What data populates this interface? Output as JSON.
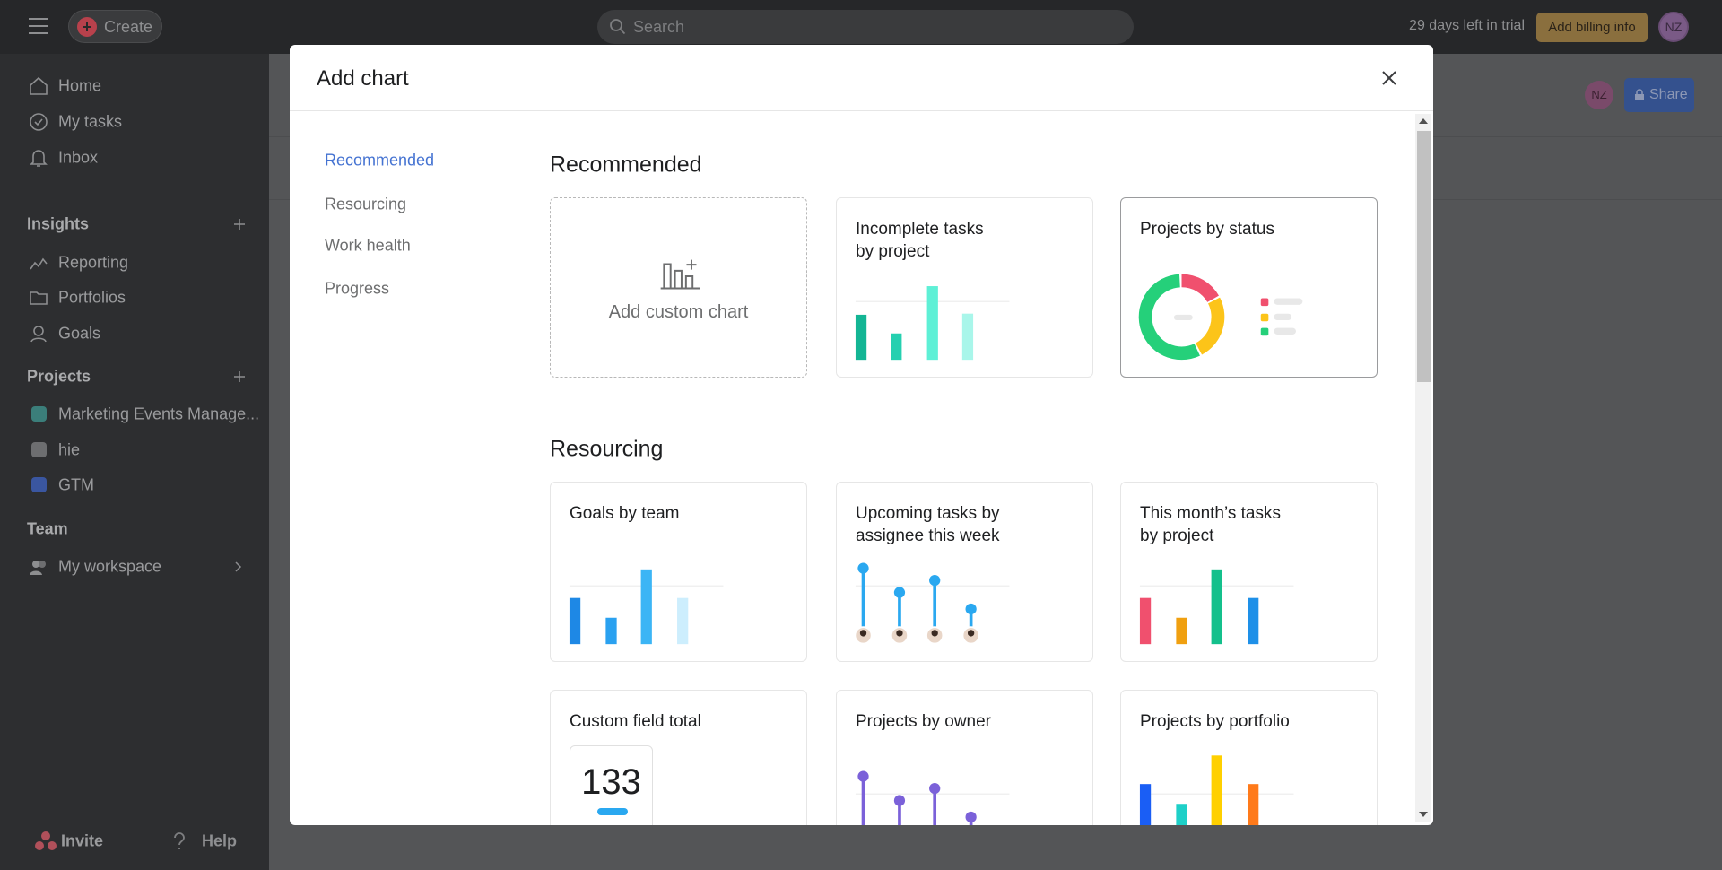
{
  "topbar": {
    "create": "Create",
    "search_placeholder": "Search",
    "trial": "29 days left in trial",
    "billing": "Add billing info",
    "avatar": "NZ"
  },
  "sidebar": {
    "nav": [
      "Home",
      "My tasks",
      "Inbox"
    ],
    "insights": {
      "title": "Insights",
      "items": [
        "Reporting",
        "Portfolios",
        "Goals"
      ]
    },
    "projects": {
      "title": "Projects",
      "items": [
        "Marketing Events Manage...",
        "hie",
        "GTM"
      ]
    },
    "team": {
      "title": "Team",
      "items": [
        "My workspace"
      ]
    },
    "footer": [
      "Invite",
      "Help"
    ]
  },
  "background": {
    "avatar": "NZ",
    "share": "Share"
  },
  "modal": {
    "title": "Add chart",
    "nav": [
      "Recommended",
      "Resourcing",
      "Work health",
      "Progress"
    ],
    "sections": [
      {
        "title": "Recommended",
        "cards": [
          "Add custom chart",
          "Incomplete tasks\nby project",
          "Projects by status"
        ]
      },
      {
        "title": "Resourcing",
        "cards": [
          "Goals by team",
          "Upcoming tasks by\nassignee this week",
          "This month’s tasks\nby project",
          "Custom field total",
          "Projects by owner",
          "Projects by portfolio"
        ]
      }
    ],
    "sample_value": "133"
  }
}
